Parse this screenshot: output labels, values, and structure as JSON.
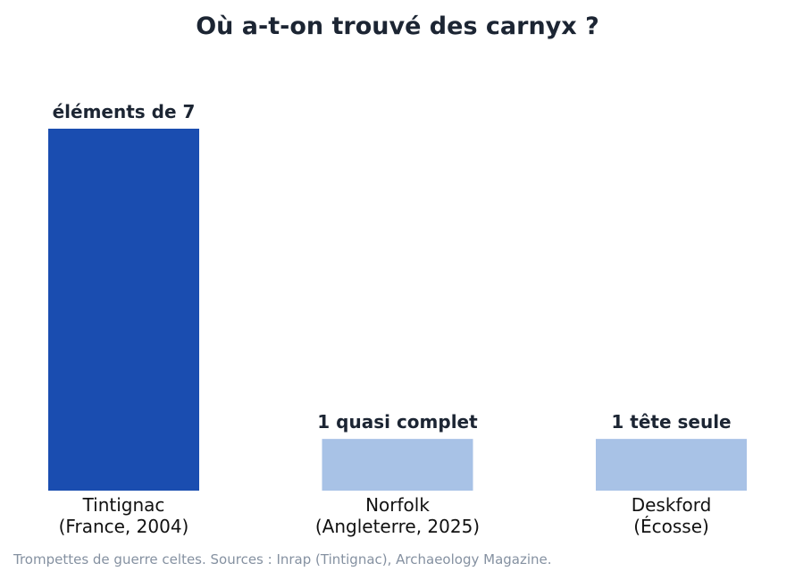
{
  "chart_data": {
    "type": "bar",
    "title": "Où a-t-on trouvé des carnyx ?",
    "xlabel": "",
    "ylabel": "",
    "ylim": [
      0,
      7
    ],
    "categories": [
      [
        "Tintignac",
        "(France, 2004)"
      ],
      [
        "Norfolk",
        "(Angleterre, 2025)"
      ],
      [
        "Deskford",
        "(Écosse)"
      ]
    ],
    "values": [
      7,
      1,
      1
    ],
    "data_labels": [
      "éléments de 7",
      "1 quasi complet",
      "1 tête seule"
    ],
    "bar_colors": [
      "#1a4db0",
      "#a8c2e6",
      "#a8c2e6"
    ],
    "grid": false,
    "legend": "none",
    "footnote": "Trompettes de guerre celtes. Sources : Inrap (Tintignac), Archaeology Magazine."
  }
}
